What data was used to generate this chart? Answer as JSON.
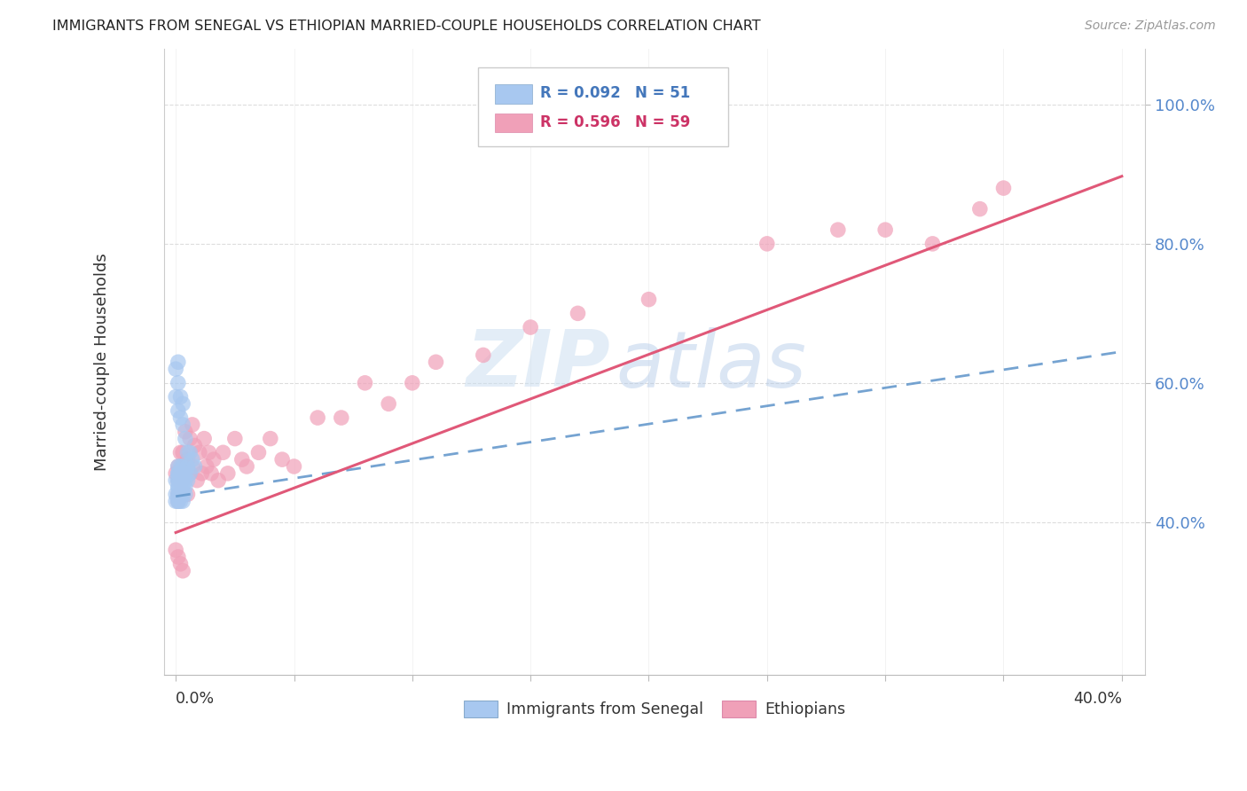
{
  "title": "IMMIGRANTS FROM SENEGAL VS ETHIOPIAN MARRIED-COUPLE HOUSEHOLDS CORRELATION CHART",
  "source": "Source: ZipAtlas.com",
  "ylabel": "Married-couple Households",
  "ytick_labels": [
    "100.0%",
    "80.0%",
    "60.0%",
    "40.0%"
  ],
  "ytick_positions": [
    1.0,
    0.8,
    0.6,
    0.4
  ],
  "xlim": [
    -0.005,
    0.41
  ],
  "ylim": [
    0.18,
    1.08
  ],
  "legend_r1": "R = 0.092",
  "legend_n1": "N = 51",
  "legend_r2": "R = 0.596",
  "legend_n2": "N = 59",
  "legend_label1": "Immigrants from Senegal",
  "legend_label2": "Ethiopians",
  "color_senegal": "#a8c8f0",
  "color_ethiopian": "#f0a0b8",
  "color_line_senegal": "#6699cc",
  "color_line_ethiopian": "#e05878",
  "watermark_zip": "ZIP",
  "watermark_atlas": "atlas",
  "senegal_x": [
    0.0,
    0.0,
    0.0,
    0.001,
    0.001,
    0.001,
    0.001,
    0.001,
    0.001,
    0.001,
    0.001,
    0.001,
    0.001,
    0.001,
    0.002,
    0.002,
    0.002,
    0.002,
    0.002,
    0.002,
    0.002,
    0.002,
    0.002,
    0.002,
    0.003,
    0.003,
    0.003,
    0.003,
    0.003,
    0.003,
    0.004,
    0.004,
    0.004,
    0.004,
    0.005,
    0.005,
    0.006,
    0.006,
    0.007,
    0.008,
    0.0,
    0.0,
    0.001,
    0.001,
    0.001,
    0.002,
    0.002,
    0.003,
    0.003,
    0.004,
    0.005
  ],
  "senegal_y": [
    0.44,
    0.43,
    0.46,
    0.47,
    0.46,
    0.45,
    0.44,
    0.44,
    0.43,
    0.46,
    0.47,
    0.48,
    0.45,
    0.43,
    0.46,
    0.47,
    0.45,
    0.44,
    0.46,
    0.47,
    0.48,
    0.44,
    0.45,
    0.43,
    0.47,
    0.46,
    0.48,
    0.45,
    0.44,
    0.43,
    0.46,
    0.47,
    0.45,
    0.44,
    0.48,
    0.46,
    0.5,
    0.47,
    0.49,
    0.48,
    0.62,
    0.58,
    0.63,
    0.6,
    0.56,
    0.55,
    0.58,
    0.57,
    0.54,
    0.52,
    0.5
  ],
  "ethiopian_x": [
    0.0,
    0.001,
    0.001,
    0.001,
    0.001,
    0.002,
    0.002,
    0.002,
    0.002,
    0.003,
    0.003,
    0.003,
    0.004,
    0.004,
    0.005,
    0.005,
    0.006,
    0.006,
    0.007,
    0.007,
    0.008,
    0.009,
    0.01,
    0.011,
    0.012,
    0.013,
    0.014,
    0.015,
    0.016,
    0.018,
    0.02,
    0.022,
    0.025,
    0.028,
    0.03,
    0.035,
    0.04,
    0.045,
    0.05,
    0.06,
    0.07,
    0.08,
    0.09,
    0.1,
    0.11,
    0.13,
    0.15,
    0.17,
    0.2,
    0.25,
    0.28,
    0.3,
    0.32,
    0.34,
    0.0,
    0.001,
    0.002,
    0.003,
    0.35
  ],
  "ethiopian_y": [
    0.47,
    0.48,
    0.46,
    0.43,
    0.44,
    0.47,
    0.5,
    0.46,
    0.44,
    0.5,
    0.48,
    0.46,
    0.53,
    0.47,
    0.49,
    0.44,
    0.52,
    0.47,
    0.54,
    0.48,
    0.51,
    0.46,
    0.5,
    0.47,
    0.52,
    0.48,
    0.5,
    0.47,
    0.49,
    0.46,
    0.5,
    0.47,
    0.52,
    0.49,
    0.48,
    0.5,
    0.52,
    0.49,
    0.48,
    0.55,
    0.55,
    0.6,
    0.57,
    0.6,
    0.63,
    0.64,
    0.68,
    0.7,
    0.72,
    0.8,
    0.82,
    0.82,
    0.8,
    0.85,
    0.36,
    0.35,
    0.34,
    0.33,
    0.88
  ]
}
